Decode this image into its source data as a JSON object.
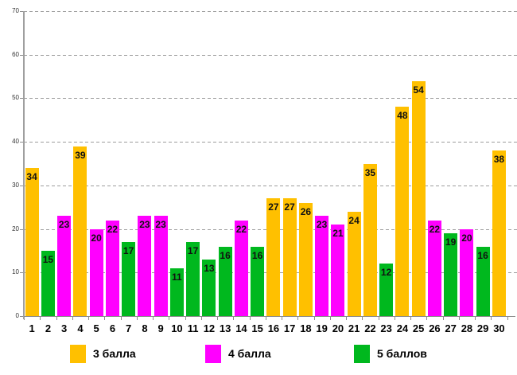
{
  "chart_data": {
    "type": "bar",
    "title": "",
    "xlabel": "",
    "ylabel": "",
    "categories": [
      "1",
      "2",
      "3",
      "4",
      "5",
      "6",
      "7",
      "8",
      "9",
      "10",
      "11",
      "12",
      "13",
      "14",
      "15",
      "16",
      "17",
      "18",
      "19",
      "20",
      "21",
      "22",
      "23",
      "24",
      "25",
      "26",
      "27",
      "28",
      "29",
      "30"
    ],
    "values": [
      34,
      15,
      23,
      39,
      20,
      22,
      17,
      23,
      23,
      11,
      17,
      13,
      16,
      22,
      16,
      27,
      27,
      26,
      23,
      21,
      24,
      35,
      12,
      48,
      54,
      22,
      19,
      20,
      16,
      38
    ],
    "bar_series": [
      "3 балла",
      "5 баллов",
      "4 балла",
      "3 балла",
      "4 балла",
      "4 балла",
      "5 баллов",
      "4 балла",
      "4 балла",
      "5 баллов",
      "5 баллов",
      "5 баллов",
      "5 баллов",
      "4 балла",
      "5 баллов",
      "3 балла",
      "3 балла",
      "3 балла",
      "4 балла",
      "4 балла",
      "3 балла",
      "3 балла",
      "5 баллов",
      "3 балла",
      "3 балла",
      "4 балла",
      "5 баллов",
      "4 балла",
      "5 баллов",
      "3 балла"
    ],
    "legend": [
      {
        "label": "3 балла",
        "color": "#FFC000"
      },
      {
        "label": "4 балла",
        "color": "#FF00FF"
      },
      {
        "label": "5 баллов",
        "color": "#00B81E"
      }
    ],
    "ylim": [
      0,
      70
    ],
    "yticks": [
      0,
      10,
      20,
      30,
      40,
      50,
      60,
      70
    ],
    "grid": "horizontal-dashed",
    "legend_position": "bottom",
    "data_labels": "inside-top"
  },
  "colors": {
    "background": "#ffffff",
    "gridline": "#9d9d9d",
    "axis": "#8c8c8c",
    "bar_label_text": "#111111",
    "axis_label_text": "#333333"
  }
}
